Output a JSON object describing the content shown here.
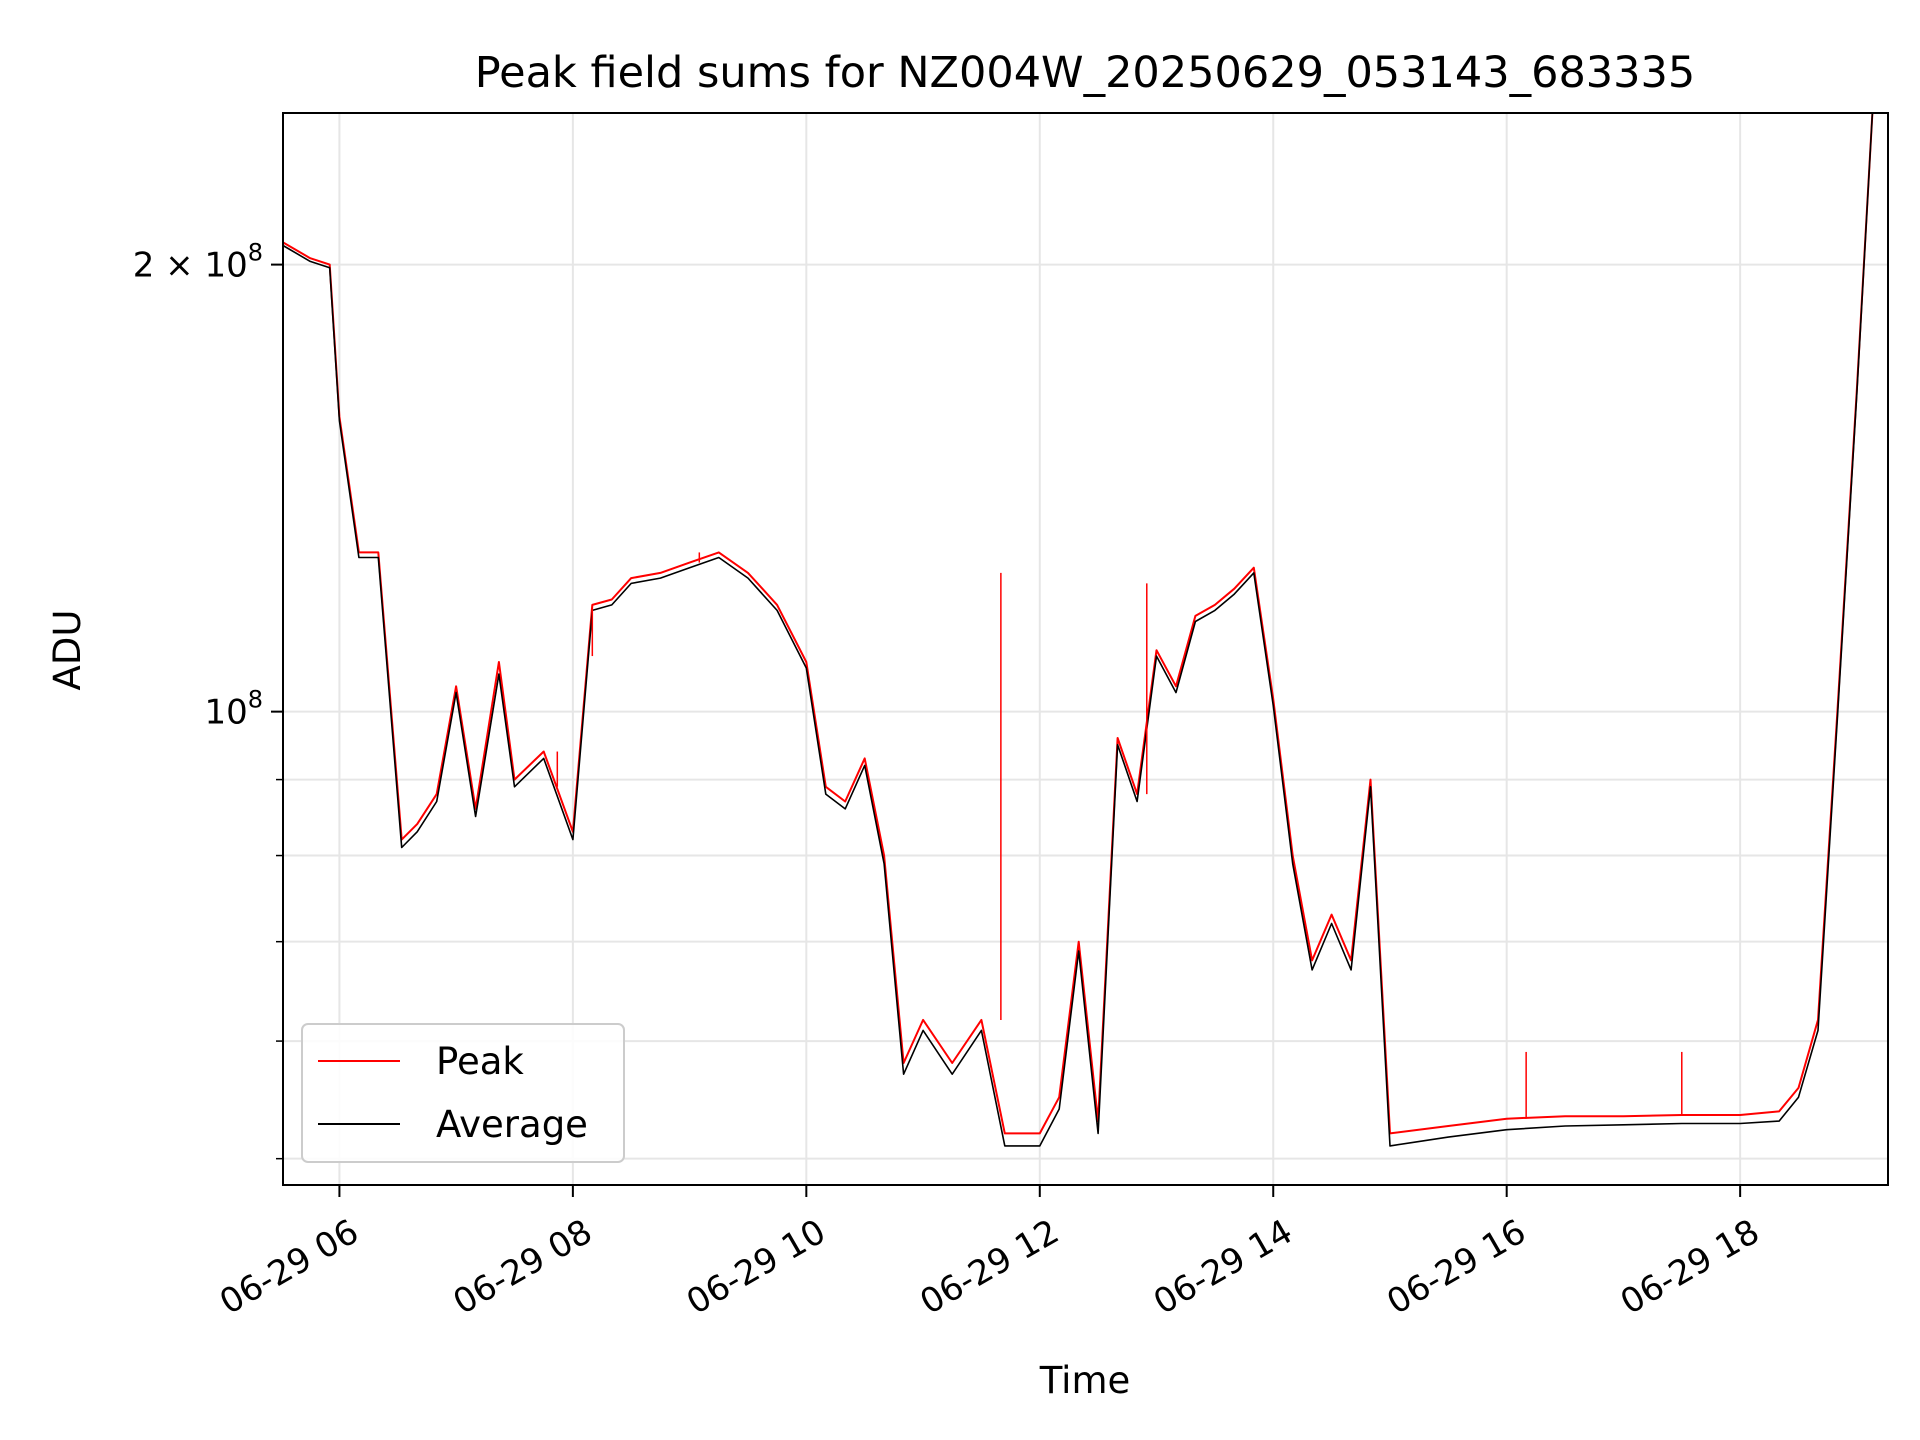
{
  "chart_data": {
    "type": "line",
    "title": "Peak field sums for NZ004W_20250629_053143_683335",
    "xlabel": "Time",
    "ylabel": "ADU",
    "yscale": "log",
    "ylim": [
      48000000,
      253000000
    ],
    "xlim": [
      "2025-06-29T05:31",
      "2025-06-29T19:16"
    ],
    "grid": true,
    "legend_position": "lower-left",
    "x_ticks": [
      "06-29 06",
      "06-29 08",
      "06-29 10",
      "06-29 12",
      "06-29 14",
      "06-29 16",
      "06-29 18"
    ],
    "y_ticks_major": [
      {
        "label_base": "10",
        "label_exp": "8",
        "value": 100000000
      },
      {
        "label_base": "2 × 10",
        "label_exp": "8",
        "value": 200000000
      }
    ],
    "y_ticks_minor_values": [
      50000000,
      60000000,
      70000000,
      80000000,
      90000000
    ],
    "x": [
      "2025-06-29T05:31",
      "2025-06-29T05:45",
      "2025-06-29T05:55",
      "2025-06-29T06:00",
      "2025-06-29T06:10",
      "2025-06-29T06:20",
      "2025-06-29T06:32",
      "2025-06-29T06:40",
      "2025-06-29T06:50",
      "2025-06-29T07:00",
      "2025-06-29T07:10",
      "2025-06-29T07:22",
      "2025-06-29T07:30",
      "2025-06-29T07:45",
      "2025-06-29T08:00",
      "2025-06-29T08:10",
      "2025-06-29T08:20",
      "2025-06-29T08:30",
      "2025-06-29T08:45",
      "2025-06-29T09:00",
      "2025-06-29T09:15",
      "2025-06-29T09:30",
      "2025-06-29T09:45",
      "2025-06-29T10:00",
      "2025-06-29T10:10",
      "2025-06-29T10:20",
      "2025-06-29T10:30",
      "2025-06-29T10:40",
      "2025-06-29T10:50",
      "2025-06-29T11:00",
      "2025-06-29T11:15",
      "2025-06-29T11:30",
      "2025-06-29T11:42",
      "2025-06-29T11:50",
      "2025-06-29T12:00",
      "2025-06-29T12:10",
      "2025-06-29T12:20",
      "2025-06-29T12:30",
      "2025-06-29T12:40",
      "2025-06-29T12:50",
      "2025-06-29T13:00",
      "2025-06-29T13:10",
      "2025-06-29T13:20",
      "2025-06-29T13:30",
      "2025-06-29T13:40",
      "2025-06-29T13:50",
      "2025-06-29T14:00",
      "2025-06-29T14:10",
      "2025-06-29T14:20",
      "2025-06-29T14:30",
      "2025-06-29T14:40",
      "2025-06-29T14:50",
      "2025-06-29T15:00",
      "2025-06-29T15:30",
      "2025-06-29T16:00",
      "2025-06-29T16:30",
      "2025-06-29T17:00",
      "2025-06-29T17:30",
      "2025-06-29T18:00",
      "2025-06-29T18:20",
      "2025-06-29T18:30",
      "2025-06-29T18:40",
      "2025-06-29T18:50",
      "2025-06-29T19:00",
      "2025-06-29T19:08",
      "2025-06-29T19:16"
    ],
    "series": [
      {
        "name": "Peak",
        "color": "#ff0000",
        "values": [
          207000000,
          202000000,
          200000000,
          158000000,
          128000000,
          128000000,
          82000000,
          84000000,
          88000000,
          104000000,
          86000000,
          108000000,
          90000000,
          94000000,
          83000000,
          118000000,
          119000000,
          123000000,
          124000000,
          126000000,
          128000000,
          124000000,
          118000000,
          108000000,
          89000000,
          87000000,
          93000000,
          80000000,
          58000000,
          62000000,
          58000000,
          62000000,
          52000000,
          52000000,
          52000000,
          55000000,
          70000000,
          53000000,
          96000000,
          88000000,
          110000000,
          104000000,
          116000000,
          118000000,
          121000000,
          125000000,
          102000000,
          80000000,
          68000000,
          73000000,
          68000000,
          90000000,
          52000000,
          52600000,
          53200000,
          53400000,
          53400000,
          53500000,
          53500000,
          53800000,
          55800000,
          62000000,
          100000000,
          165000000,
          253000000,
          253000000
        ]
      },
      {
        "name": "Average",
        "color": "#000000",
        "values": [
          206000000,
          201000000,
          199000000,
          157000000,
          127000000,
          127000000,
          81000000,
          83000000,
          87000000,
          103000000,
          85000000,
          106000000,
          89000000,
          93000000,
          82000000,
          117000000,
          118000000,
          122000000,
          123000000,
          125000000,
          127000000,
          123000000,
          117000000,
          107000000,
          88000000,
          86000000,
          92000000,
          79000000,
          57000000,
          61000000,
          57000000,
          61000000,
          51000000,
          51000000,
          51000000,
          54000000,
          69000000,
          52000000,
          95000000,
          87000000,
          109000000,
          103000000,
          115000000,
          117000000,
          120000000,
          124000000,
          101000000,
          79000000,
          67000000,
          72000000,
          67000000,
          89000000,
          51000000,
          51700000,
          52300000,
          52600000,
          52700000,
          52800000,
          52800000,
          53000000,
          55000000,
          61000000,
          99000000,
          164000000,
          253000000,
          253000000
        ]
      }
    ],
    "spikes_peak": [
      {
        "x": "2025-06-29T07:52",
        "y": 89000000
      },
      {
        "x": "2025-06-29T08:10",
        "y": 109000000
      },
      {
        "x": "2025-06-29T08:50",
        "y": 124000000
      },
      {
        "x": "2025-06-29T09:05",
        "y": 128000000
      },
      {
        "x": "2025-06-29T11:40",
        "y": 124000000
      },
      {
        "x": "2025-06-29T12:55",
        "y": 122000000
      },
      {
        "x": "2025-06-29T16:10",
        "y": 59000000
      },
      {
        "x": "2025-06-29T17:30",
        "y": 59000000
      }
    ]
  }
}
